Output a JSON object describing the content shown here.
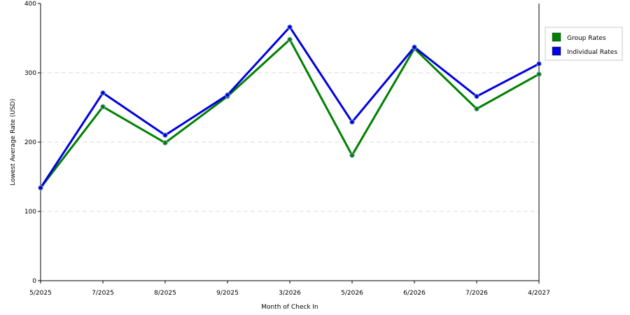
{
  "chart_data": {
    "type": "line",
    "title": "",
    "xlabel": "Month of Check In",
    "ylabel": "Lowest Average Rate (USD)",
    "categories": [
      "5/2025",
      "7/2025",
      "8/2025",
      "9/2025",
      "3/2026",
      "5/2026",
      "6/2026",
      "7/2026",
      "4/2027"
    ],
    "ylim": [
      0,
      400
    ],
    "yticks": [
      0,
      100,
      200,
      300,
      400
    ],
    "grid": true,
    "legend_position": "right",
    "series": [
      {
        "name": "Group Rates",
        "color": "#008000",
        "values": [
          134,
          251,
          199,
          266,
          348,
          181,
          335,
          248,
          298
        ]
      },
      {
        "name": "Individual Rates",
        "color": "#0000e0",
        "values": [
          134,
          271,
          210,
          268,
          366,
          229,
          337,
          266,
          313
        ]
      }
    ]
  }
}
